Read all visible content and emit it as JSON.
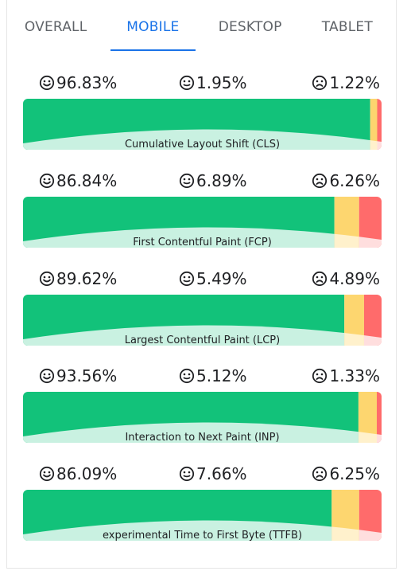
{
  "tabs": [
    {
      "label": "OVERALL",
      "active": false
    },
    {
      "label": "MOBILE",
      "active": true
    },
    {
      "label": "DESKTOP",
      "active": false
    },
    {
      "label": "TABLET",
      "active": false
    }
  ],
  "colors": {
    "good": "#12c27a",
    "average": "#fdd66f",
    "poor": "#ff6b6b",
    "good_light": "#c9f1e1",
    "average_light": "#fff1cc",
    "poor_light": "#ffdede",
    "accent": "#1a73e8"
  },
  "icons": [
    "smile-icon",
    "neutral-face-icon",
    "sad-face-icon"
  ],
  "chart_data": [
    {
      "type": "bar",
      "title": "Cumulative Layout Shift (CLS)",
      "good": 96.83,
      "average": 1.95,
      "poor": 1.22,
      "good_text": "96.83%",
      "average_text": "1.95%",
      "poor_text": "1.22%"
    },
    {
      "type": "bar",
      "title": "First Contentful Paint (FCP)",
      "good": 86.84,
      "average": 6.89,
      "poor": 6.26,
      "good_text": "86.84%",
      "average_text": "6.89%",
      "poor_text": "6.26%"
    },
    {
      "type": "bar",
      "title": "Largest Contentful Paint (LCP)",
      "good": 89.62,
      "average": 5.49,
      "poor": 4.89,
      "good_text": "89.62%",
      "average_text": "5.49%",
      "poor_text": "4.89%"
    },
    {
      "type": "bar",
      "title": "Interaction to Next Paint (INP)",
      "good": 93.56,
      "average": 5.12,
      "poor": 1.33,
      "good_text": "93.56%",
      "average_text": "5.12%",
      "poor_text": "1.33%"
    },
    {
      "type": "bar",
      "title": "experimental Time to First Byte (TTFB)",
      "good": 86.09,
      "average": 7.66,
      "poor": 6.25,
      "good_text": "86.09%",
      "average_text": "7.66%",
      "poor_text": "6.25%"
    }
  ]
}
